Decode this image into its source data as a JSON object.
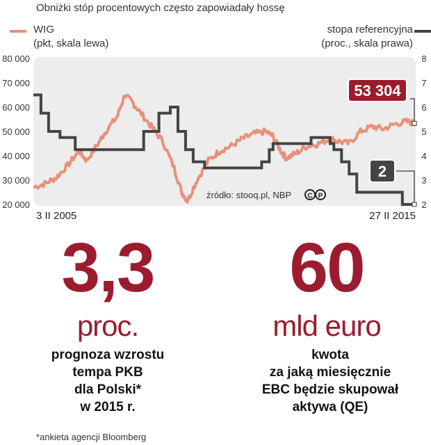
{
  "title": "Obniżki stóp procentowych często zapowiadały hossę",
  "legend": {
    "wig_name": "WIG",
    "wig_unit": "(pkt, skala lewa)",
    "rate_name": "stopa referencyjna",
    "rate_unit": "(proc., skala prawa)",
    "colors": {
      "wig": "#e8917a",
      "rate": "#444444",
      "accent": "#9b1c2e"
    }
  },
  "source": "źródło: stooq.pl, NBP",
  "source_icon": "creative-commons-icon",
  "dates": {
    "start": "3 II 2005",
    "end": "27 II 2015"
  },
  "callouts": {
    "wig_last": "53 304",
    "rate_last": "2"
  },
  "chart_data": {
    "type": "line",
    "left_axis": {
      "ticks": [
        "20 000",
        "30 000",
        "40 000",
        "50 000",
        "60 000",
        "70 000",
        "80 000"
      ],
      "range": [
        20000,
        80000
      ]
    },
    "right_axis": {
      "ticks": [
        "2",
        "3",
        "4",
        "5",
        "6",
        "7",
        "8"
      ],
      "range": [
        2,
        8
      ]
    },
    "x_range": [
      "2005-02",
      "2015-02"
    ],
    "series": [
      {
        "name": "WIG",
        "axis": "left",
        "x": [
          2005.1,
          2005.4,
          2005.7,
          2006.0,
          2006.3,
          2006.5,
          2006.8,
          2007.0,
          2007.3,
          2007.5,
          2007.7,
          2007.9,
          2008.2,
          2008.5,
          2008.8,
          2009.0,
          2009.15,
          2009.4,
          2009.7,
          2010.0,
          2010.3,
          2010.6,
          2010.9,
          2011.2,
          2011.4,
          2011.6,
          2011.75,
          2012.0,
          2012.3,
          2012.6,
          2012.9,
          2013.1,
          2013.4,
          2013.7,
          2014.0,
          2014.3,
          2014.6,
          2014.9,
          2015.15
        ],
        "y": [
          27000,
          28500,
          31000,
          36000,
          42000,
          38000,
          45000,
          50000,
          56000,
          65000,
          62000,
          58000,
          52000,
          46000,
          35000,
          25000,
          21500,
          30000,
          38000,
          42000,
          44000,
          47000,
          49000,
          50000,
          48000,
          42000,
          39000,
          41000,
          44000,
          45000,
          47000,
          46000,
          45000,
          50000,
          52000,
          51000,
          53000,
          54000,
          53304
        ]
      },
      {
        "name": "stopa referencyjna",
        "axis": "right",
        "x": [
          2005.1,
          2005.3,
          2005.5,
          2005.8,
          2006.2,
          2008.0,
          2008.4,
          2008.7,
          2008.9,
          2009.1,
          2009.3,
          2009.6,
          2011.1,
          2011.3,
          2011.4,
          2012.4,
          2012.9,
          2013.0,
          2013.2,
          2013.4,
          2013.6,
          2014.8,
          2015.15
        ],
        "y": [
          6.5,
          5.75,
          5.0,
          4.75,
          4.25,
          5.0,
          5.75,
          6.0,
          5.0,
          4.25,
          3.75,
          3.5,
          3.75,
          4.25,
          4.5,
          4.75,
          4.5,
          4.25,
          3.75,
          3.25,
          2.5,
          2.0,
          2.0
        ]
      }
    ]
  },
  "stat1": {
    "value": "3,3",
    "unit": "proc.",
    "desc": [
      "prognoza wzrostu",
      "tempa PKB",
      "dla Polski*",
      "w 2015 r."
    ]
  },
  "stat2": {
    "value": "60",
    "unit": "mld euro",
    "desc": [
      "kwota",
      "za jaką miesięcznie",
      "EBC będzie skupował",
      "aktywa (QE)"
    ]
  },
  "footnote": "*ankieta agencji Bloomberg"
}
